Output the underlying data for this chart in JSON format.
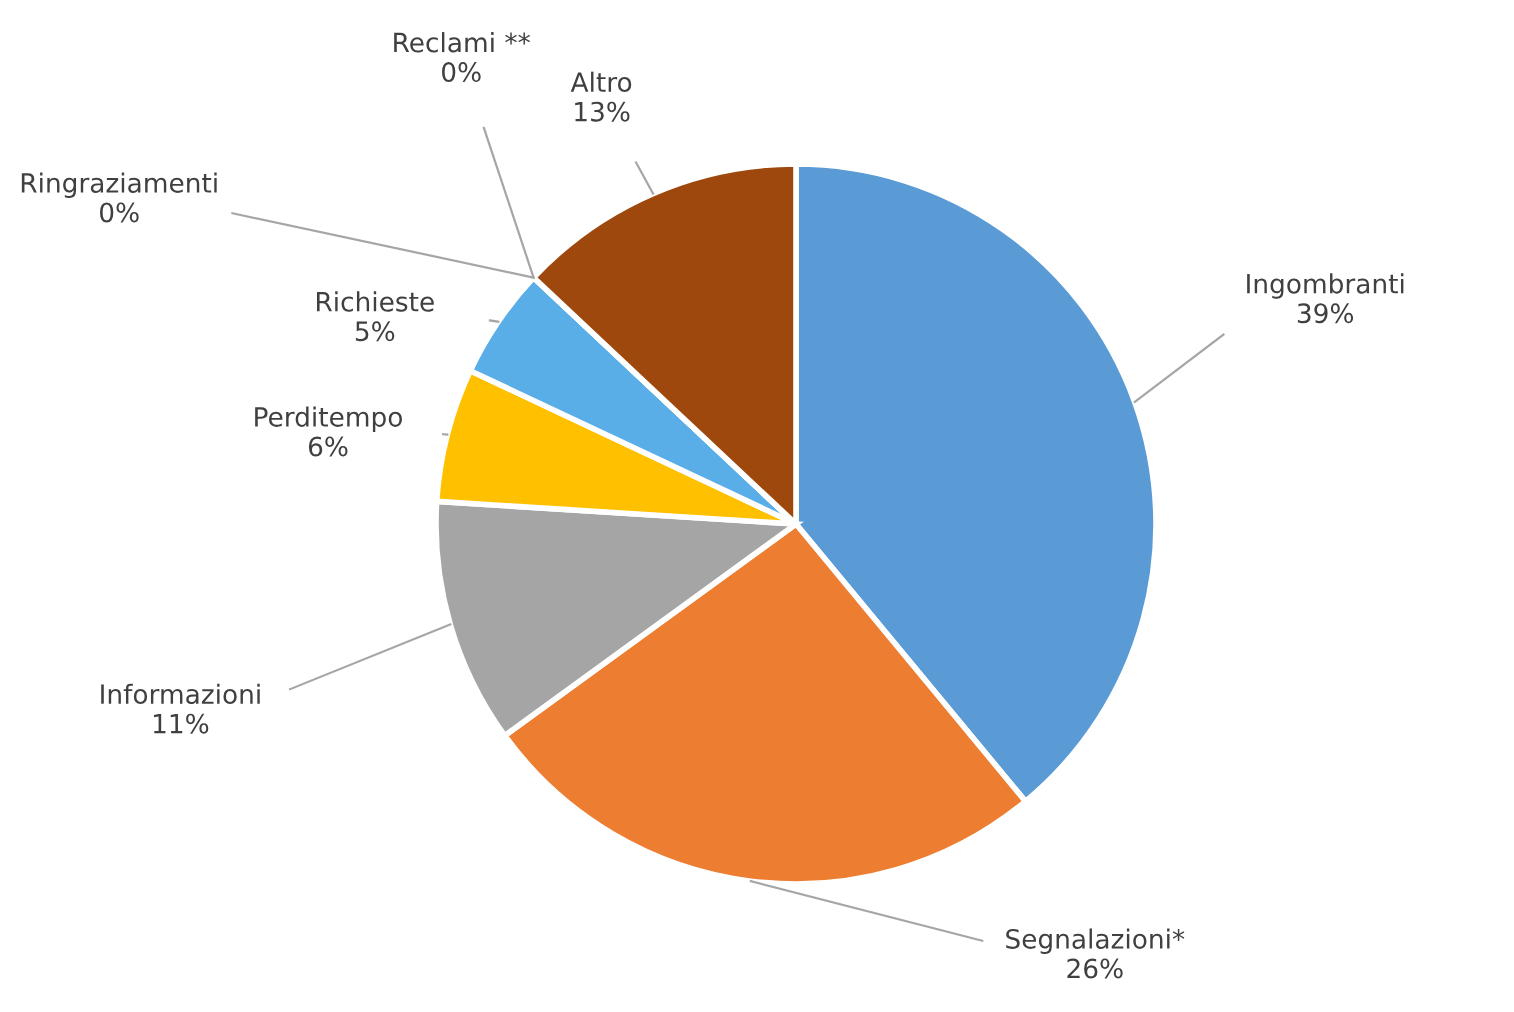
{
  "chart_data": {
    "type": "pie",
    "categories": [
      "Ingombranti",
      "Segnalazioni*",
      "Informazioni",
      "Perditempo",
      "Richieste",
      "Ringraziamenti",
      "Reclami **",
      "Altro"
    ],
    "values": [
      39,
      26,
      11,
      6,
      5,
      0,
      0,
      13
    ],
    "colors": [
      "#5b9bd5",
      "#ed7d31",
      "#a5a5a5",
      "#ffc000",
      "#5aaee8",
      "#70ad47",
      "#264478",
      "#9e480e"
    ],
    "value_labels": [
      "39%",
      "26%",
      "11%",
      "6%",
      "5%",
      "0%",
      "0%",
      "13%"
    ]
  }
}
